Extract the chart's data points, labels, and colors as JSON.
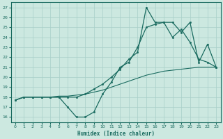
{
  "xlabel": "Humidex (Indice chaleur)",
  "bg_color": "#cce8e0",
  "grid_color": "#a8cfc8",
  "line_color": "#1a6b60",
  "xlim": [
    -0.5,
    23.5
  ],
  "ylim": [
    15.5,
    27.5
  ],
  "xticks": [
    0,
    1,
    2,
    3,
    4,
    5,
    6,
    7,
    8,
    9,
    10,
    11,
    12,
    13,
    14,
    15,
    16,
    17,
    18,
    19,
    20,
    21,
    22,
    23
  ],
  "yticks": [
    16,
    17,
    18,
    19,
    20,
    21,
    22,
    23,
    24,
    25,
    26,
    27
  ],
  "lineA_x": [
    0,
    1,
    2,
    3,
    4,
    5,
    6,
    7,
    8,
    9,
    10,
    11,
    12,
    13,
    14,
    15,
    16,
    17,
    18,
    19,
    20,
    21,
    22,
    23
  ],
  "lineA_y": [
    17.7,
    18.0,
    18.0,
    18.0,
    18.0,
    18.1,
    18.1,
    18.2,
    18.3,
    18.5,
    18.7,
    19.0,
    19.3,
    19.6,
    19.9,
    20.2,
    20.4,
    20.6,
    20.7,
    20.8,
    20.9,
    21.0,
    21.0,
    21.0
  ],
  "lineB_x": [
    0,
    1,
    2,
    3,
    4,
    5,
    6,
    7,
    8,
    9,
    10,
    11,
    12,
    13,
    14,
    15,
    16,
    17,
    18,
    19,
    20,
    21,
    22,
    23
  ],
  "lineB_y": [
    17.7,
    18.0,
    18.0,
    18.0,
    18.0,
    18.0,
    17.0,
    16.0,
    16.0,
    16.5,
    18.3,
    19.5,
    21.0,
    21.5,
    23.0,
    25.0,
    25.3,
    25.5,
    25.5,
    24.5,
    25.5,
    21.5,
    23.3,
    21.0
  ],
  "lineC_x": [
    0,
    1,
    2,
    3,
    4,
    5,
    6,
    7,
    8,
    9,
    10,
    11,
    12,
    13,
    14,
    15,
    16,
    17,
    18,
    19,
    20,
    21,
    22,
    23
  ],
  "lineC_y": [
    17.7,
    18.0,
    18.0,
    18.0,
    18.0,
    18.0,
    18.0,
    18.0,
    18.3,
    18.8,
    19.3,
    20.0,
    20.8,
    21.8,
    22.5,
    27.0,
    25.5,
    25.5,
    24.0,
    24.8,
    23.5,
    21.8,
    21.5,
    21.0
  ]
}
